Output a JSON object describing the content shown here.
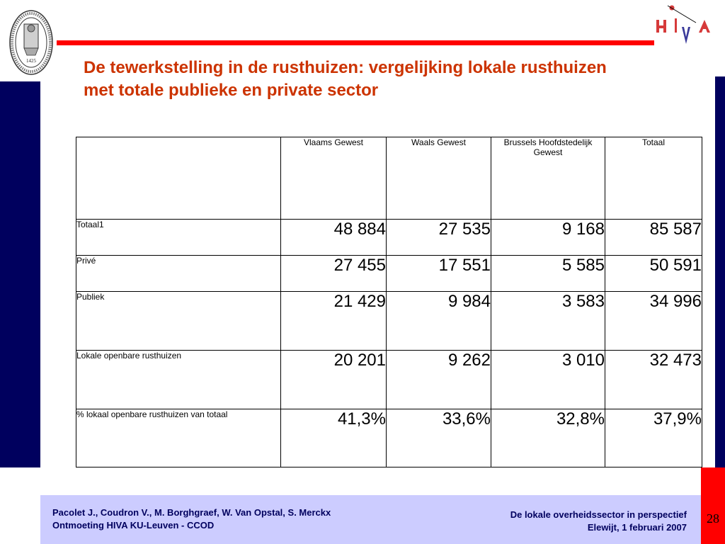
{
  "slide": {
    "title_line1": "De tewerkstelling in de rusthuizen: vergelijking lokale rusthuizen",
    "title_line2": "met totale publieke en private sector",
    "page_number": "28"
  },
  "logos": {
    "seal_icon": "university-seal-icon",
    "hiva_icon": "hiva-logo-icon",
    "seal_year": "1425"
  },
  "colors": {
    "title": "#cc3300",
    "accent_red": "#ff0000",
    "navy": "#00005e",
    "footer_bg": "#ccccff"
  },
  "table": {
    "columns": [
      "",
      "Vlaams Gewest",
      "Waals Gewest",
      "Brussels Hoofdstedelijk Gewest",
      "Totaal"
    ],
    "rows": [
      {
        "label": "Totaal1",
        "values": [
          "48 884",
          "27 535",
          "9 168",
          "85 587"
        ]
      },
      {
        "label": "Privé",
        "values": [
          "27 455",
          "17 551",
          "5 585",
          "50 591"
        ]
      },
      {
        "label": "Publiek",
        "values": [
          "21 429",
          "9 984",
          "3 583",
          "34 996"
        ]
      },
      {
        "label": "Lokale openbare rusthuizen",
        "values": [
          "20 201",
          "9 262",
          "3 010",
          "32 473"
        ]
      },
      {
        "label": "% lokaal openbare rusthuizen van totaal",
        "values": [
          "41,3%",
          "33,6%",
          "32,8%",
          "37,9%"
        ]
      }
    ]
  },
  "footer": {
    "left_line1": "Pacolet J., Coudron V., M. Borghgraef, W. Van Opstal, S. Merckx",
    "left_line2": "Ontmoeting HIVA KU-Leuven - CCOD",
    "right_line1": "De lokale overheidssector in perspectief",
    "right_line2": "Elewijt, 1 februari 2007"
  }
}
